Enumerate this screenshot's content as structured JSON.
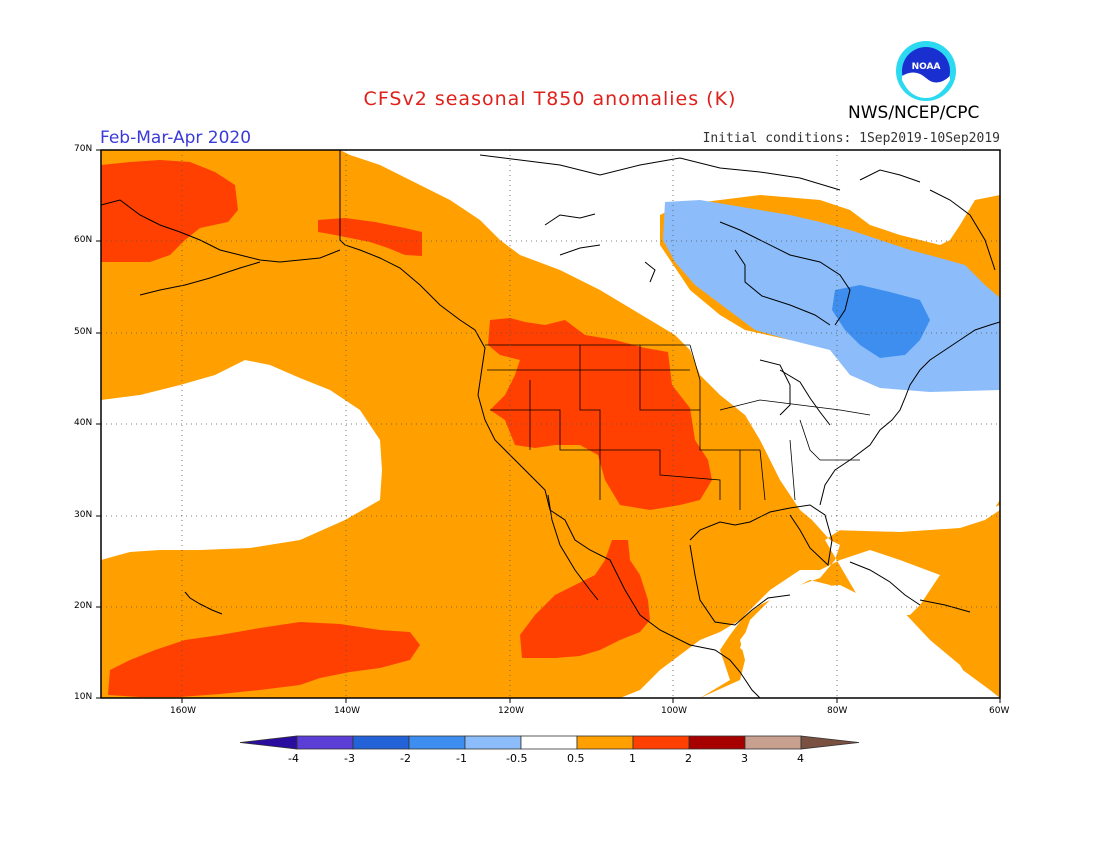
{
  "title": "CFSv2 seasonal T850 anomalies (K)",
  "period": "Feb-Mar-Apr 2020",
  "initial_conditions": "Initial conditions: 1Sep2019-10Sep2019",
  "agency": "NWS/NCEP/CPC",
  "logo_text": "NOAA",
  "lat_labels": [
    "70N",
    "60N",
    "50N",
    "40N",
    "30N",
    "20N",
    "10N"
  ],
  "lon_labels": [
    "160W",
    "140W",
    "120W",
    "100W",
    "80W",
    "60W"
  ],
  "colorbar": {
    "labels": [
      "-4",
      "-3",
      "-2",
      "-1",
      "-0.5",
      "0.5",
      "1",
      "2",
      "3",
      "4"
    ],
    "colors": [
      "#2a0d9e",
      "#5a3ed6",
      "#2462d8",
      "#3e8ef0",
      "#8cbdfa",
      "#ffffff",
      "#ff9f00",
      "#ff4000",
      "#a60000",
      "#c8a090",
      "#7a5040"
    ]
  },
  "colors": {
    "weak_warm": "#ff9f00",
    "warm": "#ff4000",
    "weak_cool": "#8cbdfa",
    "cool": "#3e8ef0",
    "title_red": "#e0201a",
    "period_blue": "#3a3ad8"
  }
}
